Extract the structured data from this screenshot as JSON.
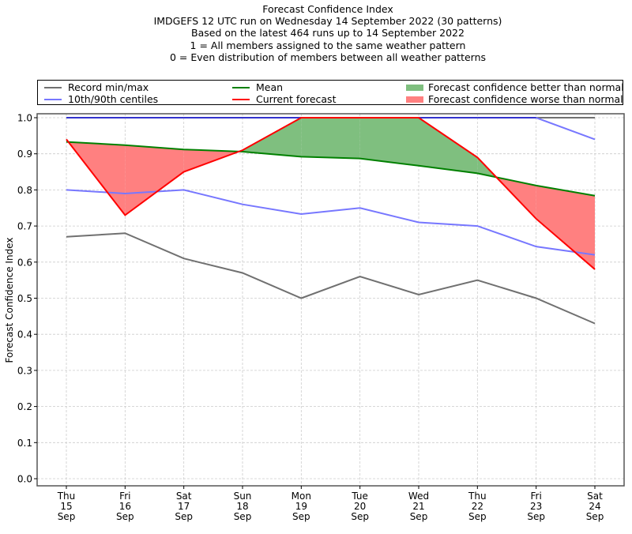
{
  "title_lines": [
    "Forecast Confidence Index",
    "IMDGEFS 12 UTC run on Wednesday 14 September 2022 (30 patterns)",
    "Based on the latest 464 runs up to 14 September 2022",
    "1 = All members assigned to the same weather pattern",
    "0 = Even distribution of members between all weather patterns"
  ],
  "legend": {
    "record": "Record min/max",
    "centiles": "10th/90th centiles",
    "mean": "Mean",
    "current": "Current forecast",
    "better": "Forecast confidence better than normal",
    "worse": "Forecast confidence worse than normal"
  },
  "colors": {
    "record": "#707070",
    "centiles": "#7777ff",
    "centile_top": "#3333cc",
    "mean": "#008000",
    "current": "#ff0000",
    "better_fill": "#7fbf7f",
    "worse_fill": "#ff8080",
    "grid": "#cccccc"
  },
  "chart_data": {
    "type": "line",
    "title": "Forecast Confidence Index",
    "xlabel": "",
    "ylabel": "Forecast Confidence Index",
    "ylim": [
      0.0,
      1.0
    ],
    "yticks": [
      "0.0",
      "0.1",
      "0.2",
      "0.3",
      "0.4",
      "0.5",
      "0.6",
      "0.7",
      "0.8",
      "0.9",
      "1.0"
    ],
    "grid": true,
    "legend_position": "top",
    "categories": [
      [
        "Thu",
        "15",
        "Sep"
      ],
      [
        "Fri",
        "16",
        "Sep"
      ],
      [
        "Sat",
        "17",
        "Sep"
      ],
      [
        "Sun",
        "18",
        "Sep"
      ],
      [
        "Mon",
        "19",
        "Sep"
      ],
      [
        "Tue",
        "20",
        "Sep"
      ],
      [
        "Wed",
        "21",
        "Sep"
      ],
      [
        "Thu",
        "22",
        "Sep"
      ],
      [
        "Fri",
        "23",
        "Sep"
      ],
      [
        "Sat",
        "24",
        "Sep"
      ]
    ],
    "series": [
      {
        "name": "Record max",
        "key": "record_max",
        "values": [
          1.0,
          1.0,
          1.0,
          1.0,
          1.0,
          1.0,
          1.0,
          1.0,
          1.0,
          1.0
        ]
      },
      {
        "name": "Record min",
        "key": "record_min",
        "values": [
          0.67,
          0.68,
          0.61,
          0.57,
          0.5,
          0.56,
          0.51,
          0.55,
          0.5,
          0.43
        ]
      },
      {
        "name": "90th centile",
        "key": "p90",
        "values": [
          1.0,
          1.0,
          1.0,
          1.0,
          1.0,
          1.0,
          1.0,
          1.0,
          1.0,
          0.94
        ]
      },
      {
        "name": "10th centile",
        "key": "p10",
        "values": [
          0.8,
          0.79,
          0.8,
          0.76,
          0.733,
          0.75,
          0.71,
          0.7,
          0.643,
          0.62
        ]
      },
      {
        "name": "Mean",
        "key": "mean",
        "values": [
          0.933,
          0.924,
          0.912,
          0.906,
          0.892,
          0.887,
          0.867,
          0.846,
          0.812,
          0.784
        ]
      },
      {
        "name": "Current forecast",
        "key": "current",
        "values": [
          0.94,
          0.73,
          0.85,
          0.91,
          1.0,
          1.0,
          1.0,
          0.89,
          0.72,
          0.58
        ]
      }
    ]
  }
}
